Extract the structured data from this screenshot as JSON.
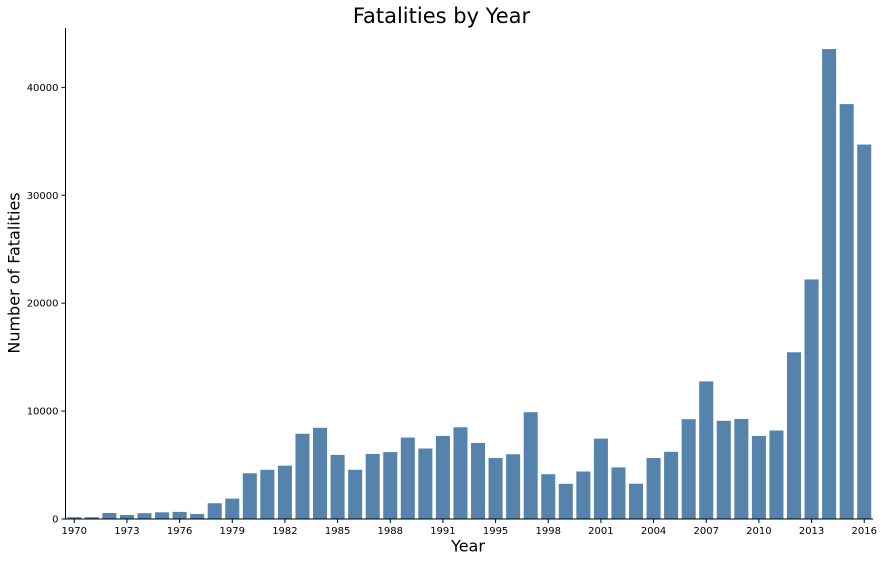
{
  "chart_data": {
    "type": "bar",
    "title": "Fatalities by Year",
    "xlabel": "Year",
    "ylabel": "Number of Fatalities",
    "color": "#5583ab",
    "ylim": [
      0,
      45500
    ],
    "yticks": [
      0,
      10000,
      20000,
      30000,
      40000
    ],
    "grid": false,
    "legend": "none",
    "categories": [
      "1970",
      "1971",
      "1972",
      "1973",
      "1974",
      "1975",
      "1976",
      "1977",
      "1978",
      "1979",
      "1980",
      "1981",
      "1982",
      "1983",
      "1984",
      "1985",
      "1986",
      "1987",
      "1988",
      "1989",
      "1990",
      "1991",
      "1992",
      "1994",
      "1995",
      "1996",
      "1997",
      "1998",
      "1999",
      "2000",
      "2001",
      "2002",
      "2003",
      "2004",
      "2005",
      "2006",
      "2007",
      "2008",
      "2009",
      "2010",
      "2011",
      "2012",
      "2013",
      "2014",
      "2015",
      "2016"
    ],
    "xtick_labels": [
      "1970",
      "",
      "",
      "1973",
      "",
      "",
      "1976",
      "",
      "",
      "1979",
      "",
      "",
      "1982",
      "",
      "",
      "1985",
      "",
      "",
      "1988",
      "",
      "",
      "1991",
      "",
      "",
      "1995",
      "",
      "",
      "1998",
      "",
      "",
      "2001",
      "",
      "",
      "2004",
      "",
      "",
      "2007",
      "",
      "",
      "2010",
      "",
      "",
      "2013",
      "",
      "",
      "2016"
    ],
    "values": [
      170,
      170,
      560,
      370,
      540,
      620,
      660,
      460,
      1460,
      1890,
      4240,
      4560,
      4940,
      7900,
      8450,
      5940,
      4560,
      6030,
      6200,
      7550,
      6530,
      7700,
      8500,
      7050,
      5650,
      6000,
      9900,
      4150,
      3260,
      4400,
      7450,
      4780,
      3270,
      5650,
      6230,
      9250,
      12750,
      9100,
      9270,
      7700,
      8200,
      15450,
      22200,
      43550,
      38450,
      34700
    ]
  }
}
